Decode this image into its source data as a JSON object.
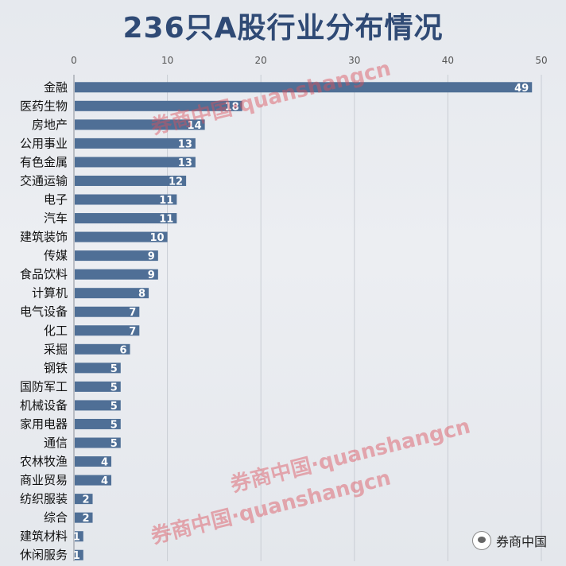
{
  "chart_data": {
    "type": "bar",
    "orientation": "horizontal",
    "title": "236只A股行业分布情况",
    "xlim": [
      0,
      50
    ],
    "ticks": [
      0,
      10,
      20,
      30,
      40,
      50
    ],
    "grid": true,
    "bar_color": "#4f6f96",
    "categories": [
      "金融",
      "医药生物",
      "房地产",
      "公用事业",
      "有色金属",
      "交通运输",
      "电子",
      "汽车",
      "建筑装饰",
      "传媒",
      "食品饮料",
      "计算机",
      "电气设备",
      "化工",
      "采掘",
      "钢铁",
      "国防军工",
      "机械设备",
      "家用电器",
      "通信",
      "农林牧渔",
      "商业贸易",
      "纺织服装",
      "综合",
      "建筑材料",
      "休闲服务"
    ],
    "values": [
      49,
      18,
      14,
      13,
      13,
      12,
      11,
      11,
      10,
      9,
      9,
      8,
      7,
      7,
      6,
      5,
      5,
      5,
      5,
      5,
      4,
      4,
      2,
      2,
      1,
      1
    ]
  },
  "watermarks": [
    "券商中国·quanshangcn",
    "券商中国·quanshangcn",
    "券商中国·quanshangcn"
  ],
  "brand": "券商中国"
}
